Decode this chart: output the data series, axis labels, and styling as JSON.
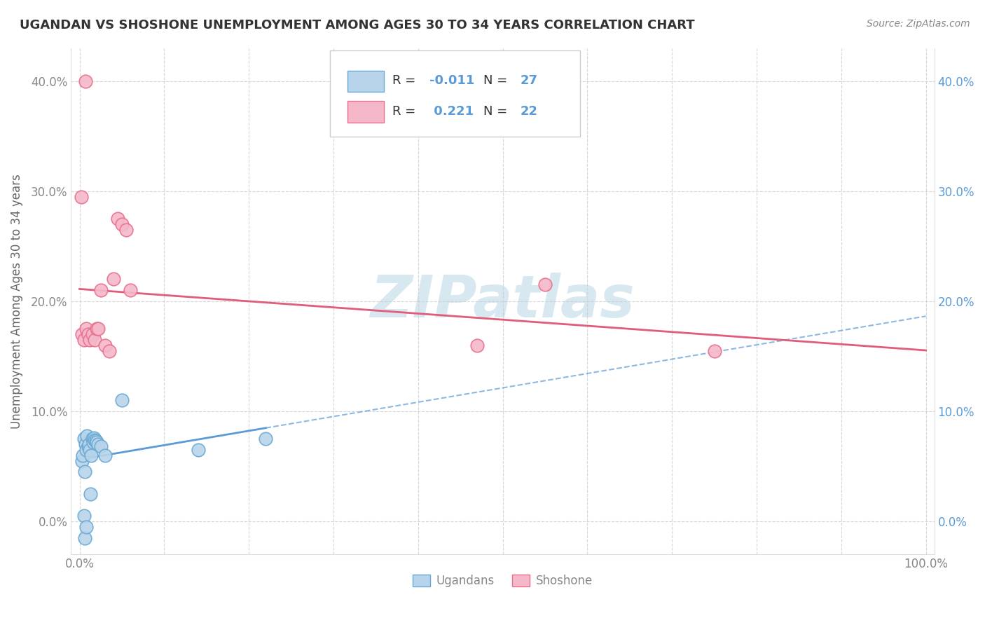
{
  "title": "UGANDAN VS SHOSHONE UNEMPLOYMENT AMONG AGES 30 TO 34 YEARS CORRELATION CHART",
  "source": "Source: ZipAtlas.com",
  "ylabel": "Unemployment Among Ages 30 to 34 years",
  "xlim": [
    0,
    100
  ],
  "ylim": [
    -3,
    43
  ],
  "xticks": [
    0,
    10,
    20,
    30,
    40,
    50,
    60,
    70,
    80,
    90,
    100
  ],
  "xticklabels": [
    "0.0%",
    "",
    "",
    "",
    "",
    "",
    "",
    "",
    "",
    "",
    "100.0%"
  ],
  "yticks": [
    0,
    10,
    20,
    30,
    40
  ],
  "yticklabels": [
    "0.0%",
    "10.0%",
    "20.0%",
    "30.0%",
    "40.0%"
  ],
  "ugandan_color": "#b8d4ea",
  "shoshone_color": "#f5b8cb",
  "ugandan_edge_color": "#6aaad4",
  "shoshone_edge_color": "#e8708a",
  "ugandan_line_color": "#5b9bd5",
  "shoshone_line_color": "#e05c7a",
  "R_ugandan": -0.011,
  "N_ugandan": 27,
  "R_shoshone": 0.221,
  "N_shoshone": 22,
  "ugandan_scatter_x": [
    0.3,
    0.4,
    0.5,
    0.6,
    0.7,
    0.8,
    0.9,
    1.0,
    1.1,
    1.2,
    1.3,
    1.4,
    1.5,
    1.6,
    1.7,
    1.8,
    1.9,
    2.0,
    2.2,
    2.5,
    3.0,
    0.5,
    0.6,
    0.8,
    5.0,
    14.0,
    22.0
  ],
  "ugandan_scatter_y": [
    5.5,
    6.0,
    7.5,
    4.5,
    7.0,
    6.5,
    7.8,
    6.8,
    7.0,
    6.5,
    2.5,
    6.0,
    7.5,
    7.2,
    7.6,
    7.4,
    7.3,
    7.2,
    7.0,
    6.8,
    6.0,
    0.5,
    -1.5,
    -0.5,
    11.0,
    6.5,
    7.5
  ],
  "shoshone_scatter_x": [
    0.3,
    0.5,
    0.8,
    1.0,
    1.2,
    1.5,
    1.8,
    2.0,
    2.2,
    2.5,
    3.0,
    3.5,
    4.0,
    4.5,
    5.0,
    5.5,
    6.0,
    47.0,
    55.0,
    75.0,
    0.2,
    0.7
  ],
  "shoshone_scatter_y": [
    17.0,
    16.5,
    17.5,
    17.0,
    16.5,
    17.0,
    16.5,
    17.5,
    17.5,
    21.0,
    16.0,
    15.5,
    22.0,
    27.5,
    27.0,
    26.5,
    21.0,
    16.0,
    21.5,
    15.5,
    29.5,
    40.0
  ],
  "background_color": "#ffffff",
  "grid_color": "#cccccc",
  "title_color": "#333333",
  "axis_label_color": "#666666",
  "tick_color": "#888888",
  "right_tick_color": "#5b9bd5",
  "source_color": "#888888",
  "watermark_text": "ZIPatlas",
  "watermark_color": "#d8e8f0"
}
